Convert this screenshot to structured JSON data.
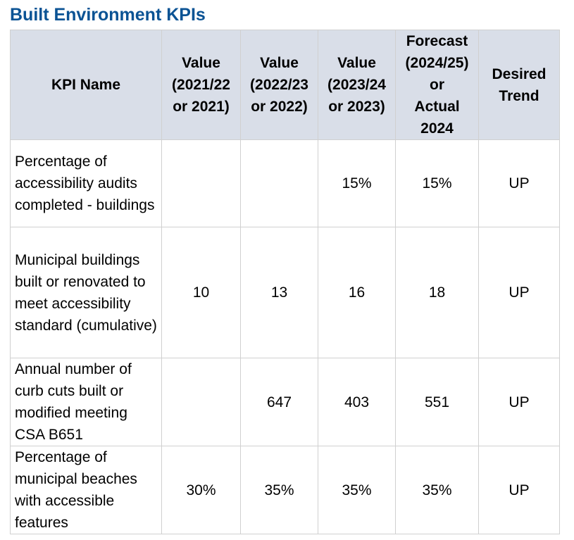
{
  "title": "Built Environment KPIs",
  "columns": [
    "KPI Name",
    "Value\n(2021/22\nor 2021)",
    "Value\n(2022/23\nor 2022)",
    "Value\n(2023/24\nor 2023)",
    "Forecast\n(2024/25)\nor\nActual\n2024",
    "Desired\nTrend"
  ],
  "rows": [
    {
      "name": "Percentage of accessibility audits completed - buildings",
      "v2021": "",
      "v2022": "",
      "v2023": "15%",
      "forecast": "15%",
      "trend": "UP"
    },
    {
      "name": "Municipal buildings built or renovated to meet accessibility standard (cumulative)",
      "v2021": "10",
      "v2022": "13",
      "v2023": "16",
      "forecast": "18",
      "trend": "UP"
    },
    {
      "name": "Annual number of curb cuts built or modified meeting CSA B651",
      "v2021": "",
      "v2022": "647",
      "v2023": "403",
      "forecast": "551",
      "trend": "UP"
    },
    {
      "name": "Percentage of municipal beaches with accessible features",
      "v2021": "30%",
      "v2022": "35%",
      "v2023": "35%",
      "forecast": "35%",
      "trend": "UP"
    }
  ]
}
